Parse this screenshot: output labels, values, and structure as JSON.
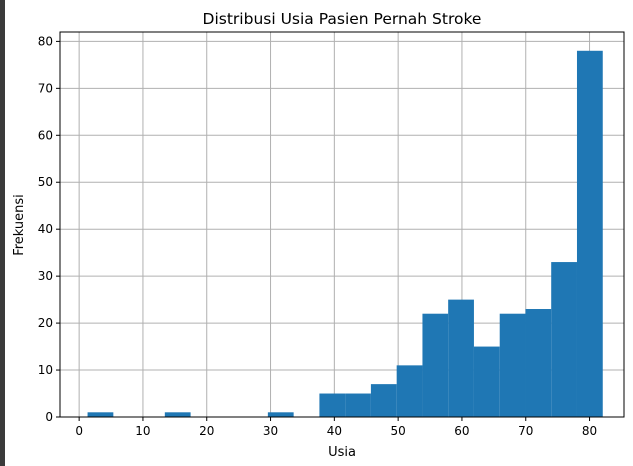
{
  "chart_data": {
    "type": "bar",
    "title": "Distribusi Usia Pasien Pernah Stroke",
    "xlabel": "Usia",
    "ylabel": "Frekuensi",
    "xlim": [
      -3.0,
      85.4
    ],
    "ylim": [
      0,
      82
    ],
    "xticks": [
      0,
      10,
      20,
      30,
      40,
      50,
      60,
      70,
      80
    ],
    "yticks": [
      0,
      10,
      20,
      30,
      40,
      50,
      60,
      70,
      80
    ],
    "grid": true,
    "bar_color": "#1f77b4",
    "bins": [
      {
        "x0": 1.32,
        "x1": 5.36,
        "value": 1
      },
      {
        "x0": 5.36,
        "x1": 9.39,
        "value": 0
      },
      {
        "x0": 9.39,
        "x1": 13.43,
        "value": 0
      },
      {
        "x0": 13.43,
        "x1": 17.47,
        "value": 1
      },
      {
        "x0": 17.47,
        "x1": 21.51,
        "value": 0
      },
      {
        "x0": 21.51,
        "x1": 25.54,
        "value": 0
      },
      {
        "x0": 25.54,
        "x1": 29.58,
        "value": 0
      },
      {
        "x0": 29.58,
        "x1": 33.62,
        "value": 1
      },
      {
        "x0": 33.62,
        "x1": 37.66,
        "value": 0
      },
      {
        "x0": 37.66,
        "x1": 41.69,
        "value": 5
      },
      {
        "x0": 41.69,
        "x1": 45.73,
        "value": 5
      },
      {
        "x0": 45.73,
        "x1": 49.77,
        "value": 7
      },
      {
        "x0": 49.77,
        "x1": 53.81,
        "value": 11
      },
      {
        "x0": 53.81,
        "x1": 57.84,
        "value": 22
      },
      {
        "x0": 57.84,
        "x1": 61.88,
        "value": 25
      },
      {
        "x0": 61.88,
        "x1": 65.92,
        "value": 15
      },
      {
        "x0": 65.92,
        "x1": 69.96,
        "value": 22
      },
      {
        "x0": 69.96,
        "x1": 73.99,
        "value": 23
      },
      {
        "x0": 73.99,
        "x1": 78.03,
        "value": 33
      },
      {
        "x0": 78.03,
        "x1": 82.07,
        "value": 78
      }
    ]
  }
}
